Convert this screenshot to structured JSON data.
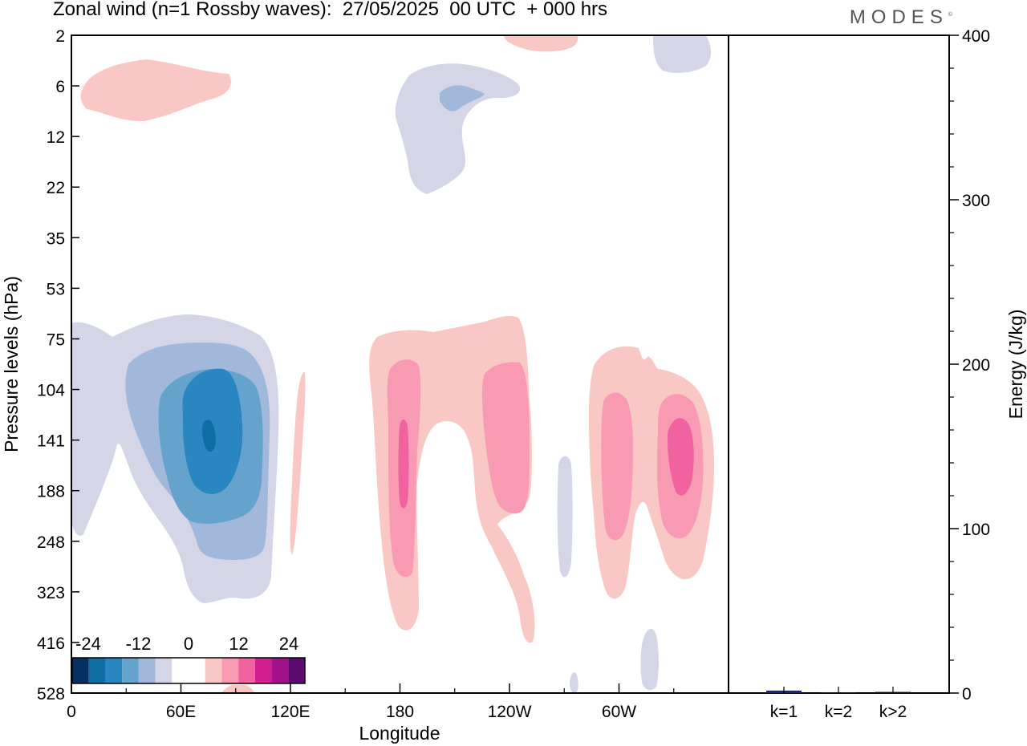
{
  "header": {
    "title": "Zonal wind (n=1 Rossby waves):  27/05/2025  00 UTC  + 000 hrs",
    "brand": "MODES",
    "brand_mark": "©"
  },
  "chart_data": [
    {
      "type": "heatmap",
      "title": "Zonal wind (n=1 Rossby waves):  27/05/2025  00 UTC  + 000 hrs",
      "xlabel": "Longitude",
      "ylabel": "Pressure levels (hPa)",
      "x_ticks": [
        "0",
        "60E",
        "120E",
        "180",
        "120W",
        "60W"
      ],
      "x_minor_ticks": [
        "30E",
        "90E",
        "150E",
        "150W",
        "90W",
        "30W"
      ],
      "y_ticks": [
        "2",
        "6",
        "12",
        "22",
        "35",
        "53",
        "75",
        "104",
        "141",
        "188",
        "248",
        "323",
        "416",
        "528"
      ],
      "xlim": [
        0,
        360
      ],
      "colorbar": {
        "labels": [
          "-24",
          "-12",
          "0",
          "12",
          "24"
        ],
        "colors": [
          "#053061",
          "#0e6ea3",
          "#2a86c0",
          "#65a3cc",
          "#a2b8db",
          "#d4d6e8",
          "#ffffff",
          "#ffffff",
          "#f9c8c4",
          "#f99ab4",
          "#f062a0",
          "#d11f8f",
          "#a0118a",
          "#5b0a6e"
        ]
      },
      "features": [
        {
          "sign": "positive",
          "level": 1,
          "lon_range": [
            7,
            83
          ],
          "pressure": "4-9 hPa"
        },
        {
          "sign": "negative",
          "level": 1,
          "lon_range": [
            168,
            236
          ],
          "pressure": "4-22 hPa"
        },
        {
          "sign": "negative",
          "level": 2,
          "lon_range": [
            188,
            203
          ],
          "pressure": "6-8 hPa"
        },
        {
          "sign": "positive",
          "level": 1,
          "lon_range": [
            238,
            262
          ],
          "pressure": "2-3 hPa"
        },
        {
          "sign": "negative",
          "level": 1,
          "lon_range": [
            322,
            350
          ],
          "pressure": "2-4 hPa"
        },
        {
          "sign": "negative",
          "level": 1,
          "lon_range": [
            0,
            111
          ],
          "pressure": "75-323 hPa"
        },
        {
          "sign": "negative",
          "level": 2,
          "lon_range": [
            27,
            104
          ],
          "pressure": "88-260 hPa"
        },
        {
          "sign": "negative",
          "level": 3,
          "lon_range": [
            45,
            100
          ],
          "pressure": "100-210 hPa"
        },
        {
          "sign": "negative",
          "level": 4,
          "lon_range": [
            61,
            87
          ],
          "pressure": "115-180 hPa"
        },
        {
          "sign": "negative",
          "level": 5,
          "lon_range": [
            73,
            78
          ],
          "pressure": "130-145 hPa"
        },
        {
          "sign": "positive",
          "level": 1,
          "lon_range": [
            119,
            125
          ],
          "pressure": "100-260 hPa"
        },
        {
          "sign": "positive",
          "level": 1,
          "lon_range": [
            163,
            252
          ],
          "pressure": "72-430 hPa"
        },
        {
          "sign": "positive",
          "level": 2,
          "lon_range": [
            173,
            192
          ],
          "pressure": "100-290 hPa"
        },
        {
          "sign": "positive",
          "level": 3,
          "lon_range": [
            180,
            184
          ],
          "pressure": "130-180 hPa"
        },
        {
          "sign": "positive",
          "level": 2,
          "lon_range": [
            226,
            253
          ],
          "pressure": "108-200 hPa"
        },
        {
          "sign": "negative",
          "level": 1,
          "lon_range": [
            267,
            275
          ],
          "pressure": "160-300 hPa"
        },
        {
          "sign": "positive",
          "level": 1,
          "lon_range": [
            285,
            348
          ],
          "pressure": "97-330 hPa"
        },
        {
          "sign": "positive",
          "level": 2,
          "lon_range": [
            290,
            306
          ],
          "pressure": "120-240 hPa"
        },
        {
          "sign": "positive",
          "level": 2,
          "lon_range": [
            322,
            346
          ],
          "pressure": "115-240 hPa"
        },
        {
          "sign": "positive",
          "level": 3,
          "lon_range": [
            328,
            343
          ],
          "pressure": "135-180 hPa"
        },
        {
          "sign": "negative",
          "level": 1,
          "lon_range": [
            313,
            322
          ],
          "pressure": "390-528 hPa"
        },
        {
          "sign": "negative",
          "level": 1,
          "lon_range": [
            275,
            279
          ],
          "pressure": "500-528 hPa"
        },
        {
          "sign": "positive",
          "level": 1,
          "lon_range": [
            78,
            100
          ],
          "pressure": "500-528 hPa"
        }
      ]
    },
    {
      "type": "bar",
      "ylabel": "Energy (J/kg)",
      "categories": [
        "k=1",
        "k=2",
        "k>2"
      ],
      "values": [
        1.5,
        0.3,
        0.7
      ],
      "ylim": [
        0,
        400
      ],
      "y_ticks": [
        "0",
        "100",
        "200",
        "300",
        "400"
      ],
      "bar_colors": [
        "#1a237e",
        "#1a237e",
        "#111111"
      ]
    }
  ]
}
